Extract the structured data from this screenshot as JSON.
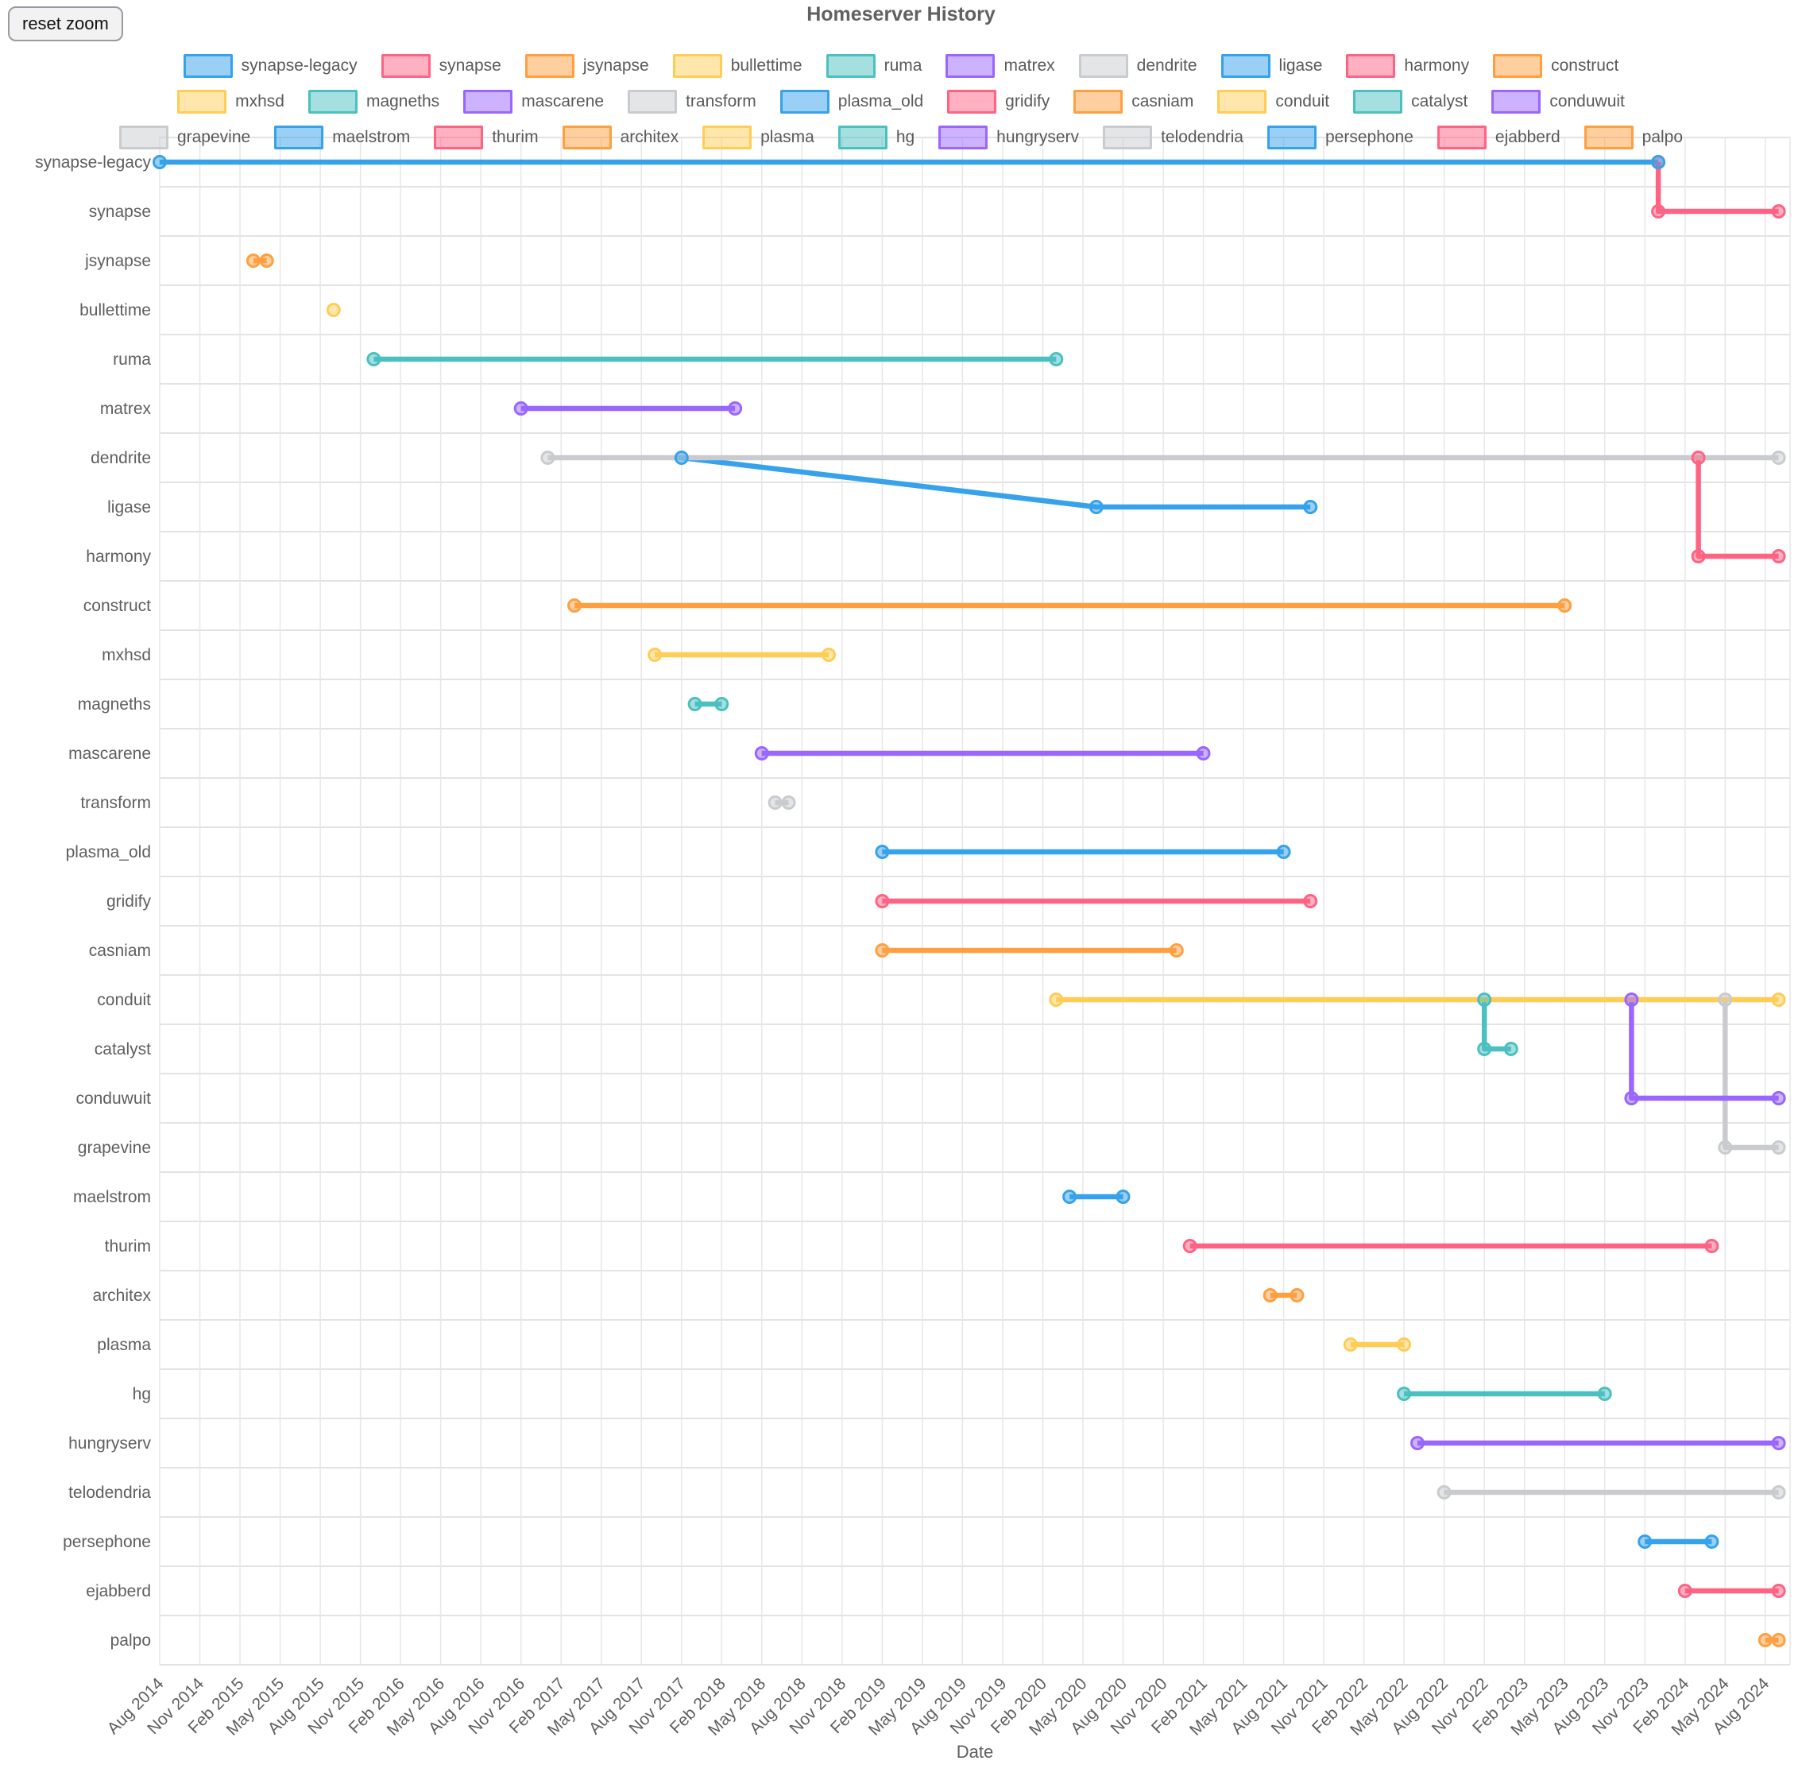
{
  "header": {
    "title": "Homeserver History",
    "reset_button": "reset zoom"
  },
  "chart_data": {
    "type": "line",
    "subtype": "timeline-gantt",
    "title": "Homeserver History",
    "xlabel": "Date",
    "grid": true,
    "legend_position": "top",
    "x_range": [
      "2014-08",
      "2024-09"
    ],
    "x_ticks": [
      "Aug 2014",
      "Nov 2014",
      "Feb 2015",
      "May 2015",
      "Aug 2015",
      "Nov 2015",
      "Feb 2016",
      "May 2016",
      "Aug 2016",
      "Nov 2016",
      "Feb 2017",
      "May 2017",
      "Aug 2017",
      "Nov 2017",
      "Feb 2018",
      "May 2018",
      "Aug 2018",
      "Nov 2018",
      "Feb 2019",
      "May 2019",
      "Aug 2019",
      "Nov 2019",
      "Feb 2020",
      "May 2020",
      "Aug 2020",
      "Nov 2020",
      "Feb 2021",
      "May 2021",
      "Aug 2021",
      "Nov 2021",
      "Feb 2022",
      "May 2022",
      "Aug 2022",
      "Nov 2022",
      "Feb 2023",
      "May 2023",
      "Aug 2023",
      "Nov 2023",
      "Feb 2024",
      "May 2024",
      "Aug 2024"
    ],
    "categories": [
      "synapse-legacy",
      "synapse",
      "jsynapse",
      "bullettime",
      "ruma",
      "matrex",
      "dendrite",
      "ligase",
      "harmony",
      "construct",
      "mxhsd",
      "magneths",
      "mascarene",
      "transform",
      "plasma_old",
      "gridify",
      "casniam",
      "conduit",
      "catalyst",
      "conduwuit",
      "grapevine",
      "maelstrom",
      "thurim",
      "architex",
      "plasma",
      "hg",
      "hungryserv",
      "telodendria",
      "persephone",
      "ejabberd",
      "palpo"
    ],
    "palette": {
      "blue": "#36A2EB",
      "pink": "#FF6384",
      "orange": "#FF9F40",
      "yellow": "#FFCD56",
      "teal": "#4BC0C0",
      "purple": "#9966FF",
      "gray": "#C9CBCF"
    },
    "series": [
      {
        "name": "synapse-legacy",
        "color": "blue",
        "points": [
          [
            "2014-08",
            "synapse-legacy"
          ],
          [
            "2023-12",
            "synapse-legacy"
          ]
        ]
      },
      {
        "name": "synapse",
        "color": "pink",
        "points": [
          [
            "2023-12",
            "synapse-legacy"
          ],
          [
            "2023-12",
            "synapse"
          ],
          [
            "2024-09",
            "synapse"
          ]
        ]
      },
      {
        "name": "jsynapse",
        "color": "orange",
        "points": [
          [
            "2015-03",
            "jsynapse"
          ],
          [
            "2015-04",
            "jsynapse"
          ]
        ]
      },
      {
        "name": "bullettime",
        "color": "yellow",
        "points": [
          [
            "2015-09",
            "bullettime"
          ]
        ]
      },
      {
        "name": "ruma",
        "color": "teal",
        "points": [
          [
            "2015-12",
            "ruma"
          ],
          [
            "2020-03",
            "ruma"
          ]
        ]
      },
      {
        "name": "matrex",
        "color": "purple",
        "points": [
          [
            "2016-11",
            "matrex"
          ],
          [
            "2018-03",
            "matrex"
          ]
        ]
      },
      {
        "name": "dendrite",
        "color": "gray",
        "points": [
          [
            "2017-01",
            "dendrite"
          ],
          [
            "2024-09",
            "dendrite"
          ]
        ]
      },
      {
        "name": "ligase",
        "color": "blue",
        "points": [
          [
            "2017-11",
            "dendrite"
          ],
          [
            "2020-06",
            "ligase"
          ],
          [
            "2021-10",
            "ligase"
          ]
        ]
      },
      {
        "name": "harmony",
        "color": "pink",
        "points": [
          [
            "2024-03",
            "dendrite"
          ],
          [
            "2024-03",
            "harmony"
          ],
          [
            "2024-09",
            "harmony"
          ]
        ]
      },
      {
        "name": "construct",
        "color": "orange",
        "points": [
          [
            "2017-03",
            "construct"
          ],
          [
            "2023-05",
            "construct"
          ]
        ]
      },
      {
        "name": "mxhsd",
        "color": "yellow",
        "points": [
          [
            "2017-09",
            "mxhsd"
          ],
          [
            "2018-10",
            "mxhsd"
          ]
        ]
      },
      {
        "name": "magneths",
        "color": "teal",
        "points": [
          [
            "2017-12",
            "magneths"
          ],
          [
            "2018-02",
            "magneths"
          ]
        ]
      },
      {
        "name": "mascarene",
        "color": "purple",
        "points": [
          [
            "2018-05",
            "mascarene"
          ],
          [
            "2021-02",
            "mascarene"
          ]
        ]
      },
      {
        "name": "transform",
        "color": "gray",
        "points": [
          [
            "2018-06",
            "transform"
          ],
          [
            "2018-07",
            "transform"
          ]
        ]
      },
      {
        "name": "plasma_old",
        "color": "blue",
        "points": [
          [
            "2019-02",
            "plasma_old"
          ],
          [
            "2021-08",
            "plasma_old"
          ]
        ]
      },
      {
        "name": "gridify",
        "color": "pink",
        "points": [
          [
            "2019-02",
            "gridify"
          ],
          [
            "2021-10",
            "gridify"
          ]
        ]
      },
      {
        "name": "casniam",
        "color": "orange",
        "points": [
          [
            "2019-02",
            "casniam"
          ],
          [
            "2020-12",
            "casniam"
          ]
        ]
      },
      {
        "name": "conduit",
        "color": "yellow",
        "points": [
          [
            "2020-03",
            "conduit"
          ],
          [
            "2024-09",
            "conduit"
          ]
        ]
      },
      {
        "name": "catalyst",
        "color": "teal",
        "points": [
          [
            "2022-11",
            "conduit"
          ],
          [
            "2022-11",
            "catalyst"
          ],
          [
            "2023-01",
            "catalyst"
          ]
        ]
      },
      {
        "name": "conduwuit",
        "color": "purple",
        "points": [
          [
            "2023-10",
            "conduit"
          ],
          [
            "2023-10",
            "conduwuit"
          ],
          [
            "2024-09",
            "conduwuit"
          ]
        ]
      },
      {
        "name": "grapevine",
        "color": "gray",
        "points": [
          [
            "2024-05",
            "conduit"
          ],
          [
            "2024-05",
            "grapevine"
          ],
          [
            "2024-09",
            "grapevine"
          ]
        ]
      },
      {
        "name": "maelstrom",
        "color": "blue",
        "points": [
          [
            "2020-04",
            "maelstrom"
          ],
          [
            "2020-08",
            "maelstrom"
          ]
        ]
      },
      {
        "name": "thurim",
        "color": "pink",
        "points": [
          [
            "2021-01",
            "thurim"
          ],
          [
            "2024-04",
            "thurim"
          ]
        ]
      },
      {
        "name": "architex",
        "color": "orange",
        "points": [
          [
            "2021-07",
            "architex"
          ],
          [
            "2021-09",
            "architex"
          ]
        ]
      },
      {
        "name": "plasma",
        "color": "yellow",
        "points": [
          [
            "2022-01",
            "plasma"
          ],
          [
            "2022-05",
            "plasma"
          ]
        ]
      },
      {
        "name": "hg",
        "color": "teal",
        "points": [
          [
            "2022-05",
            "hg"
          ],
          [
            "2023-08",
            "hg"
          ]
        ]
      },
      {
        "name": "hungryserv",
        "color": "purple",
        "points": [
          [
            "2022-06",
            "hungryserv"
          ],
          [
            "2024-09",
            "hungryserv"
          ]
        ]
      },
      {
        "name": "telodendria",
        "color": "gray",
        "points": [
          [
            "2022-08",
            "telodendria"
          ],
          [
            "2024-09",
            "telodendria"
          ]
        ]
      },
      {
        "name": "persephone",
        "color": "blue",
        "points": [
          [
            "2023-11",
            "persephone"
          ],
          [
            "2024-04",
            "persephone"
          ]
        ]
      },
      {
        "name": "ejabberd",
        "color": "pink",
        "points": [
          [
            "2024-02",
            "ejabberd"
          ],
          [
            "2024-09",
            "ejabberd"
          ]
        ]
      },
      {
        "name": "palpo",
        "color": "orange",
        "points": [
          [
            "2024-08",
            "palpo"
          ],
          [
            "2024-09",
            "palpo"
          ]
        ]
      }
    ],
    "legend_rows": [
      [
        0,
        1,
        2,
        3,
        4,
        5,
        6,
        7,
        8,
        9
      ],
      [
        10,
        11,
        12,
        13,
        14,
        15,
        16,
        17,
        18,
        19
      ],
      [
        20,
        21,
        22,
        23,
        24,
        25,
        26,
        27,
        28,
        29,
        30
      ]
    ]
  }
}
